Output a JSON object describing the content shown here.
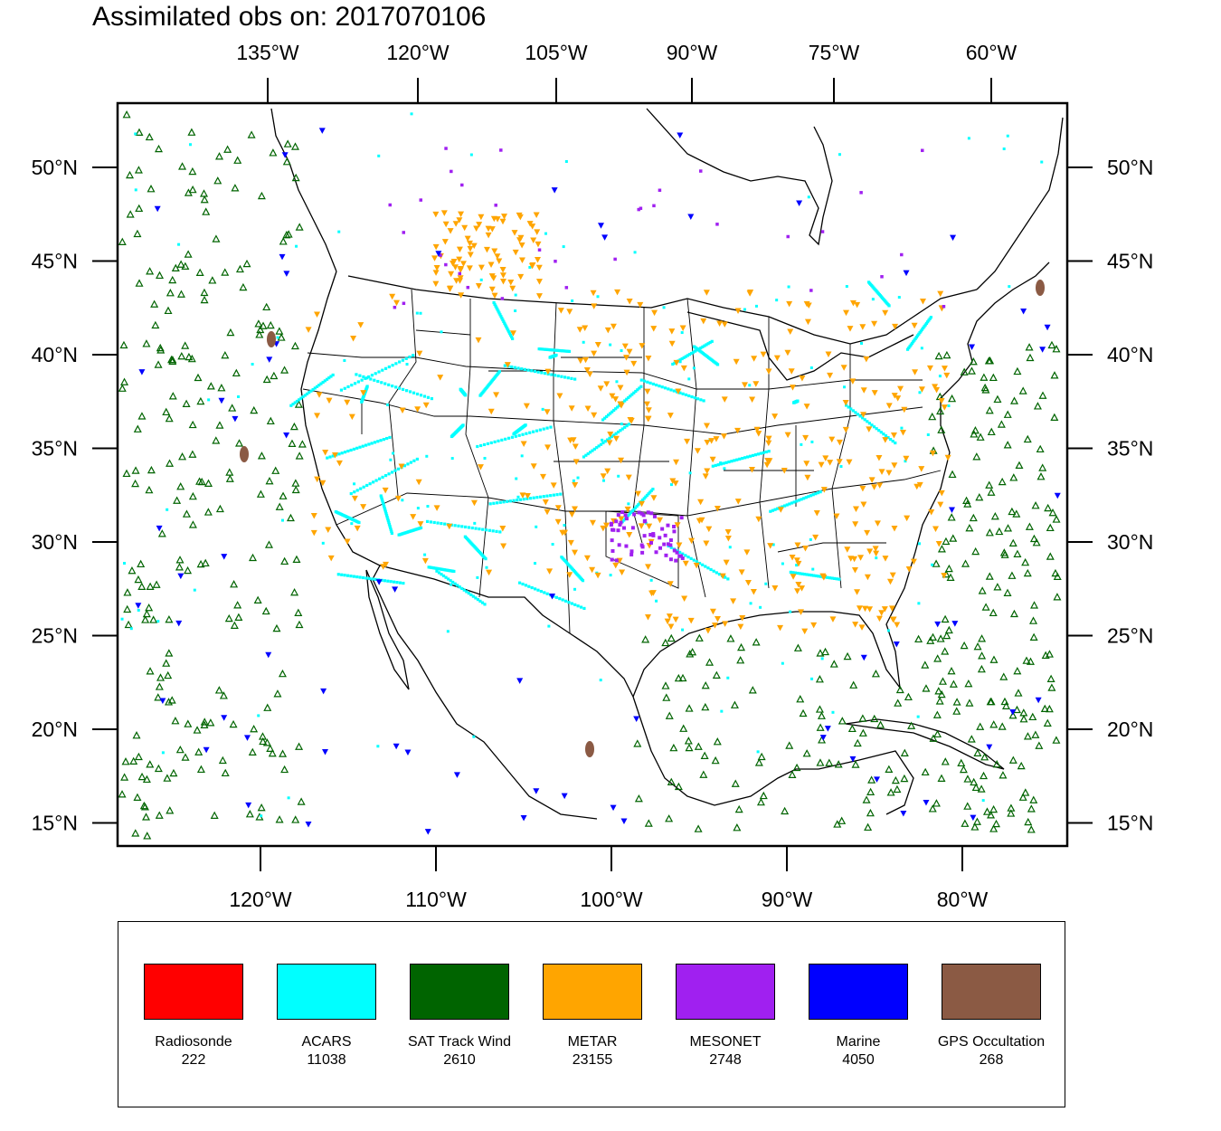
{
  "title": "Assimilated obs on: 2017070106",
  "map": {
    "top_axis_labels": [
      "135°W",
      "120°W",
      "105°W",
      "90°W",
      "75°W",
      "60°W"
    ],
    "bottom_axis_labels": [
      "120°W",
      "110°W",
      "100°W",
      "90°W",
      "80°W"
    ],
    "left_axis_labels": [
      "50°N",
      "45°N",
      "40°N",
      "35°N",
      "30°N",
      "25°N",
      "20°N",
      "15°N"
    ],
    "right_axis_labels": [
      "50°N",
      "45°N",
      "40°N",
      "35°N",
      "30°N",
      "25°N",
      "20°N",
      "15°N"
    ],
    "lat_range": [
      14,
      54
    ],
    "bottom_lon_range": [
      -128,
      -74
    ]
  },
  "legend": {
    "items": [
      {
        "name": "Radiosonde",
        "count": "222",
        "color": "#ff0000"
      },
      {
        "name": "ACARS",
        "count": "11038",
        "color": "#00ffff"
      },
      {
        "name": "SAT Track Wind",
        "count": "2610",
        "color": "#006400"
      },
      {
        "name": "METAR",
        "count": "23155",
        "color": "#ffa500"
      },
      {
        "name": "MESONET",
        "count": "2748",
        "color": "#a020f0"
      },
      {
        "name": "Marine",
        "count": "4050",
        "color": "#0000ff"
      },
      {
        "name": "GPS Occultation",
        "count": "268",
        "color": "#8b5a44"
      }
    ]
  }
}
